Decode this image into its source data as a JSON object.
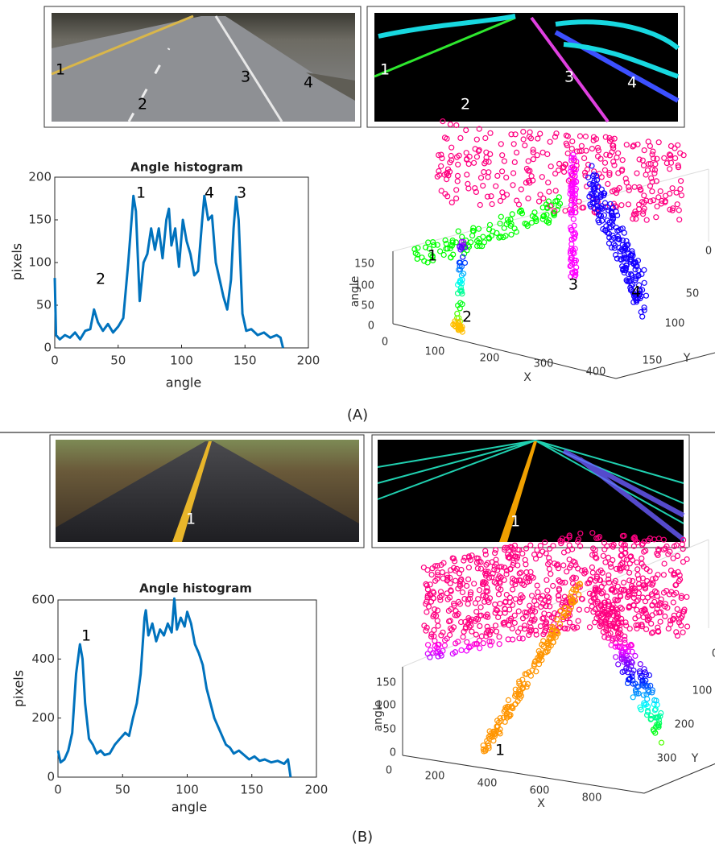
{
  "panels": [
    {
      "caption": "(A)",
      "photo_labels": [
        "1",
        "2",
        "3",
        "4"
      ],
      "edge_labels": [
        "1",
        "2",
        "3",
        "4"
      ]
    },
    {
      "caption": "(B)",
      "photo_labels": [
        "1"
      ],
      "edge_labels": [
        "1"
      ]
    }
  ],
  "chart_data": [
    {
      "type": "line",
      "title": "Angle histogram",
      "x_label": "angle",
      "y_label": "pixels",
      "color": "#0072bd",
      "x": [
        0,
        1,
        4,
        8,
        12,
        16,
        20,
        24,
        28,
        31,
        34,
        38,
        42,
        46,
        50,
        54,
        58,
        62,
        64,
        67,
        70,
        73,
        76,
        79,
        82,
        85,
        88,
        90,
        92,
        95,
        98,
        101,
        104,
        107,
        110,
        113,
        116,
        118,
        121,
        124,
        127,
        130,
        133,
        136,
        139,
        141,
        143,
        145,
        148,
        151,
        155,
        160,
        165,
        170,
        175,
        178,
        180
      ],
      "values": [
        82,
        15,
        10,
        15,
        12,
        18,
        10,
        20,
        22,
        45,
        30,
        20,
        28,
        18,
        25,
        35,
        100,
        178,
        160,
        55,
        100,
        110,
        140,
        115,
        140,
        105,
        150,
        163,
        120,
        140,
        95,
        150,
        125,
        110,
        85,
        90,
        145,
        178,
        150,
        155,
        100,
        80,
        60,
        45,
        80,
        140,
        177,
        150,
        40,
        20,
        22,
        15,
        18,
        12,
        15,
        12,
        0
      ],
      "xlim": [
        0,
        200
      ],
      "xticks": [
        0,
        50,
        100,
        150,
        200
      ],
      "ylim": [
        0,
        200
      ],
      "yticks": [
        0,
        50,
        100,
        150,
        200
      ],
      "annotations": [
        "1",
        "2",
        "4",
        "3"
      ]
    },
    {
      "type": "scatter3d",
      "x_label": "X",
      "y_label": "Y",
      "z_label": "angle",
      "xticks": [
        0,
        100,
        200,
        300,
        400
      ],
      "yticks": [
        0,
        50,
        100,
        150
      ],
      "zticks": [
        0,
        50,
        100,
        150
      ],
      "annotations": [
        "1",
        "2",
        "3",
        "4"
      ]
    },
    {
      "type": "line",
      "title": "Angle histogram",
      "x_label": "angle",
      "y_label": "pixels",
      "color": "#0072bd",
      "x": [
        0,
        2,
        5,
        8,
        11,
        14,
        17,
        19,
        21,
        24,
        27,
        30,
        33,
        36,
        40,
        44,
        48,
        52,
        55,
        58,
        61,
        64,
        67,
        68,
        70,
        73,
        76,
        79,
        82,
        85,
        88,
        90,
        92,
        95,
        98,
        100,
        103,
        106,
        109,
        112,
        115,
        118,
        121,
        124,
        127,
        130,
        133,
        136,
        140,
        144,
        148,
        152,
        156,
        160,
        165,
        170,
        175,
        178,
        180
      ],
      "values": [
        90,
        50,
        60,
        90,
        150,
        350,
        450,
        400,
        250,
        130,
        110,
        80,
        90,
        75,
        80,
        110,
        130,
        150,
        140,
        200,
        250,
        350,
        540,
        565,
        480,
        520,
        460,
        500,
        480,
        520,
        490,
        605,
        500,
        540,
        510,
        560,
        520,
        450,
        420,
        380,
        300,
        250,
        200,
        170,
        140,
        110,
        100,
        80,
        90,
        75,
        60,
        70,
        55,
        60,
        50,
        55,
        45,
        60,
        0
      ],
      "xlim": [
        0,
        200
      ],
      "xticks": [
        0,
        50,
        100,
        150,
        200
      ],
      "ylim": [
        0,
        600
      ],
      "yticks": [
        0,
        200,
        400,
        600
      ],
      "annotations": [
        "1"
      ]
    },
    {
      "type": "scatter3d",
      "x_label": "X",
      "y_label": "Y",
      "z_label": "angle",
      "xticks": [
        0,
        200,
        400,
        600,
        800
      ],
      "yticks": [
        0,
        100,
        200,
        300
      ],
      "zticks": [
        0,
        50,
        100,
        150
      ],
      "annotations": [
        "1"
      ]
    }
  ]
}
